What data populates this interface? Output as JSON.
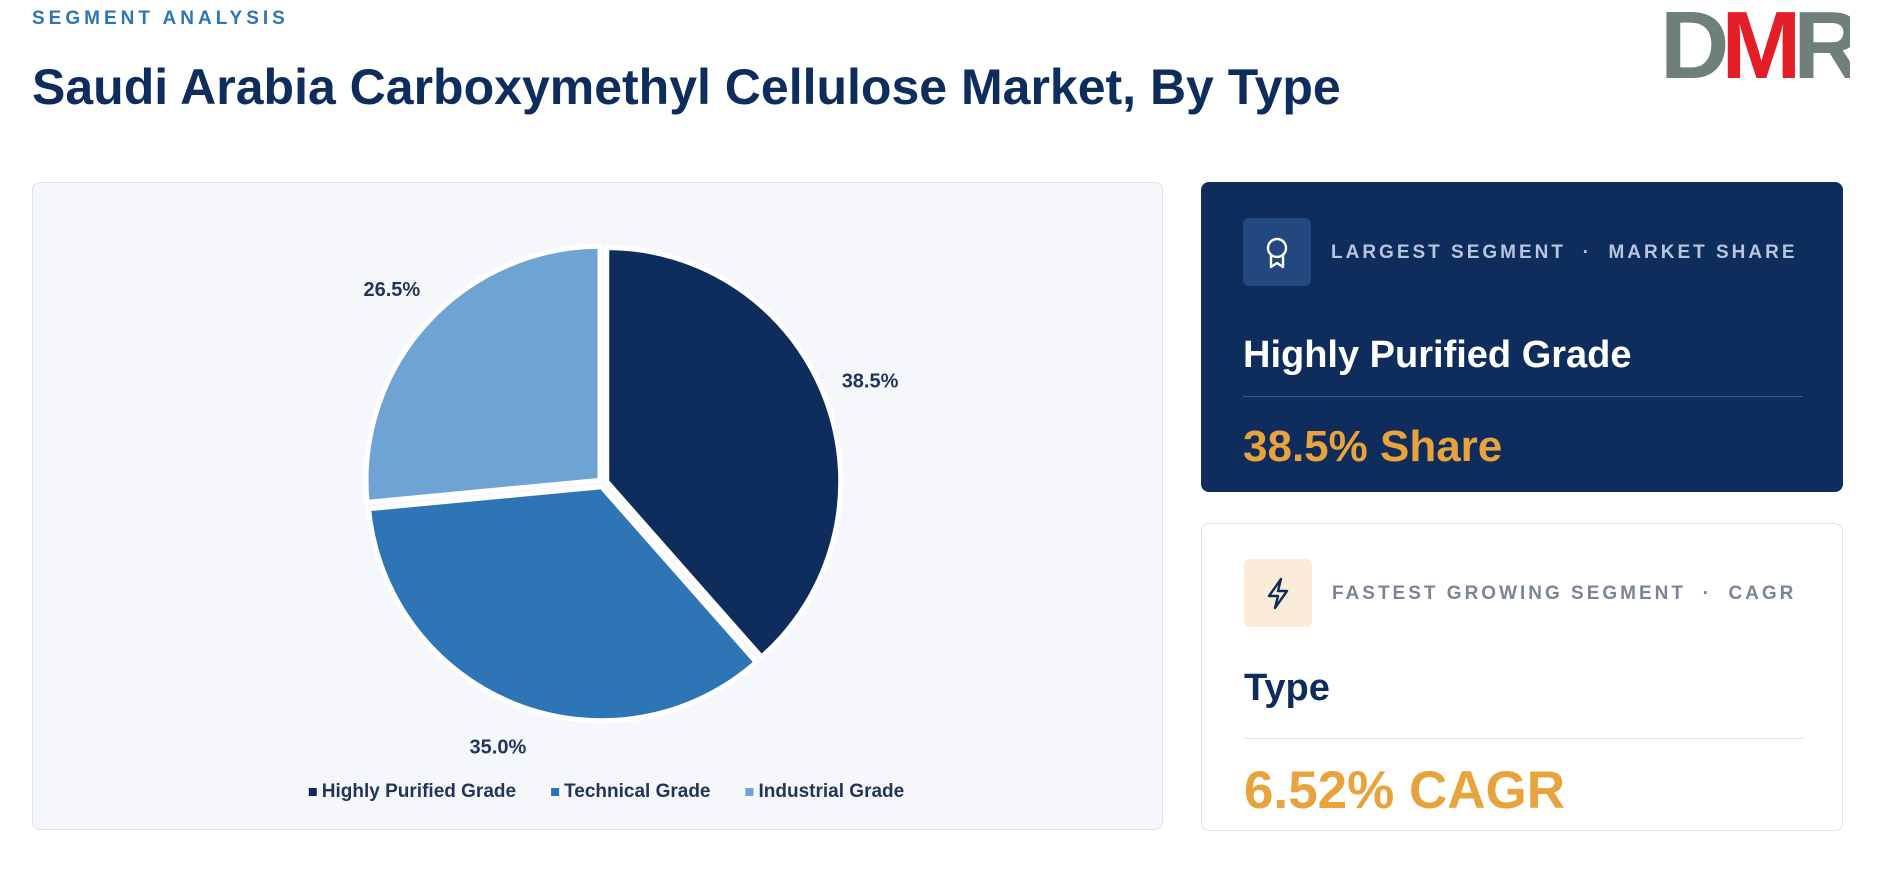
{
  "logo": {
    "letters": [
      "D",
      "M",
      "R"
    ]
  },
  "header": {
    "kicker": "SEGMENT ANALYSIS",
    "title": "Saudi Arabia Carboxymethyl Cellulose Market, By Type"
  },
  "chart_data": {
    "type": "pie",
    "categories": [
      "Highly Purified Grade",
      "Technical Grade",
      "Industrial Grade"
    ],
    "values": [
      38.5,
      35.0,
      26.5
    ],
    "value_labels": [
      "38.5%",
      "35.0%",
      "26.5%"
    ],
    "colors": [
      "#0f2d5c",
      "#2e75b6",
      "#6fa3d4"
    ]
  },
  "cards": [
    {
      "label": "LARGEST SEGMENT  ·  MARKET SHARE",
      "name": "Highly Purified Grade",
      "stat": "38.5% Share"
    },
    {
      "label": "FASTEST GROWING SEGMENT  ·  CAGR",
      "name": "Type",
      "stat": "6.52% CAGR"
    }
  ]
}
